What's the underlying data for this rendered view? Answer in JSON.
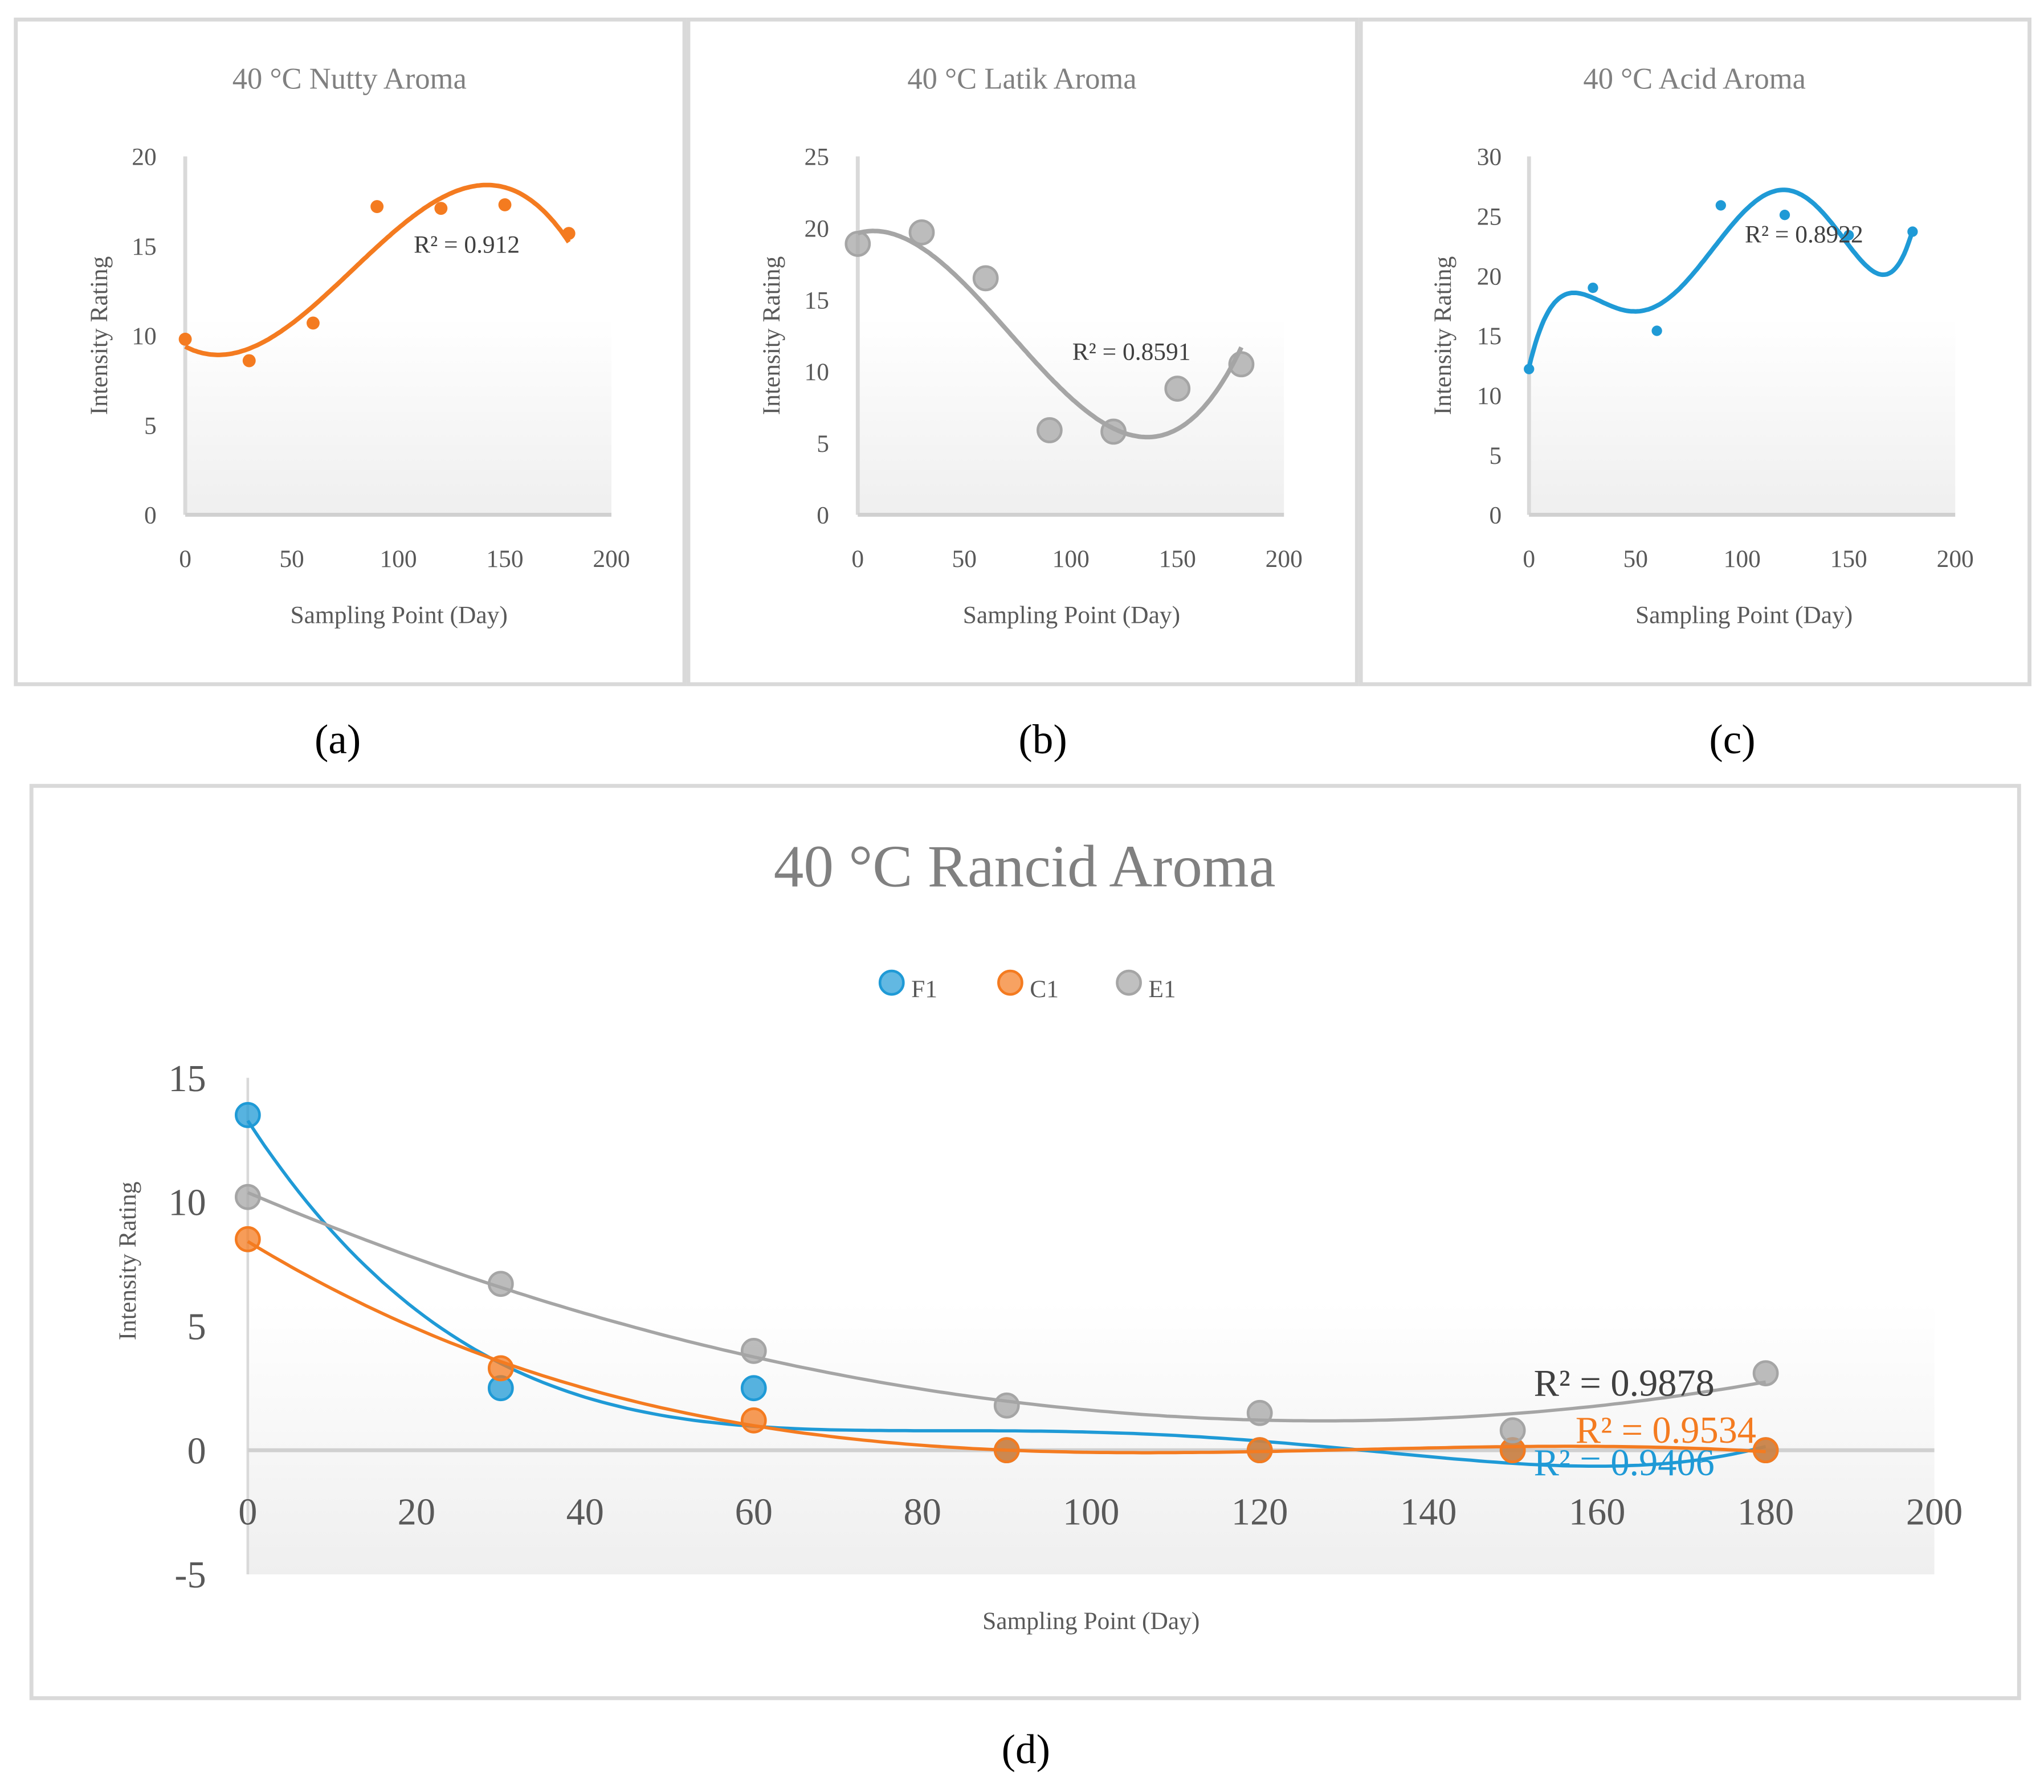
{
  "captions": [
    "(a)",
    "(b)",
    "(c)",
    "(d)"
  ],
  "chart_data": [
    {
      "type": "scatter",
      "title": "40 °C Nutty Aroma",
      "xlabel": "Sampling Point (Day)",
      "ylabel": "Intensity Rating",
      "xlim": [
        0,
        200
      ],
      "ylim": [
        0,
        20
      ],
      "xticks": [
        0,
        50,
        100,
        150,
        200
      ],
      "yticks": [
        0,
        5,
        10,
        15,
        20
      ],
      "series": [
        {
          "name": "Nutty",
          "color": "#f47b20",
          "trend_degree": 3,
          "r2_label": "R² = 0.912",
          "x": [
            0,
            30,
            60,
            90,
            120,
            150,
            180
          ],
          "y": [
            9.8,
            8.6,
            10.7,
            17.2,
            17.1,
            17.3,
            15.7
          ]
        }
      ]
    },
    {
      "type": "scatter",
      "title": "40 °C Latik Aroma",
      "xlabel": "Sampling Point (Day)",
      "ylabel": "Intensity Rating",
      "xlim": [
        0,
        200
      ],
      "ylim": [
        0,
        25
      ],
      "xticks": [
        0,
        50,
        100,
        150,
        200
      ],
      "yticks": [
        0,
        5,
        10,
        15,
        20,
        25
      ],
      "series": [
        {
          "name": "Latik",
          "color": "#a5a5a5",
          "trend_degree": 3,
          "r2_label": "R² = 0.8591",
          "x": [
            0,
            30,
            60,
            90,
            120,
            150,
            180
          ],
          "y": [
            18.9,
            19.7,
            16.5,
            5.9,
            5.8,
            8.8,
            10.5
          ]
        }
      ]
    },
    {
      "type": "scatter",
      "title": "40 °C Acid Aroma",
      "xlabel": "Sampling Point (Day)",
      "ylabel": "Intensity Rating",
      "xlim": [
        0,
        200
      ],
      "ylim": [
        0,
        30
      ],
      "xticks": [
        0,
        50,
        100,
        150,
        200
      ],
      "yticks": [
        0,
        5,
        10,
        15,
        20,
        25,
        30
      ],
      "series": [
        {
          "name": "Acid",
          "color": "#1f9ad6",
          "trend_degree": 5,
          "r2_label": "R² = 0.8922",
          "x": [
            0,
            30,
            60,
            90,
            120,
            150,
            180
          ],
          "y": [
            12.2,
            19.0,
            15.4,
            25.9,
            25.1,
            23.4,
            23.7
          ]
        }
      ]
    },
    {
      "type": "scatter",
      "title": "40 °C Rancid Aroma",
      "xlabel": "Sampling Point (Day)",
      "ylabel": "Intensity Rating",
      "xlim": [
        0,
        200
      ],
      "ylim": [
        -5,
        15
      ],
      "xticks": [
        0,
        20,
        40,
        60,
        80,
        100,
        120,
        140,
        160,
        180,
        200
      ],
      "yticks": [
        -5,
        0,
        5,
        10,
        15
      ],
      "legend": "top",
      "series": [
        {
          "name": "F1",
          "color": "#1f9ad6",
          "trend_degree": 4,
          "r2_label": "R² = 0.9406",
          "x": [
            0,
            30,
            60,
            90,
            120,
            150,
            180
          ],
          "y": [
            13.5,
            2.5,
            2.5,
            0,
            0,
            0,
            0
          ]
        },
        {
          "name": "C1",
          "color": "#f47b20",
          "trend_degree": 3,
          "r2_label": "R² = 0.9534",
          "x": [
            0,
            30,
            60,
            90,
            120,
            150,
            180
          ],
          "y": [
            8.5,
            3.3,
            1.2,
            0,
            0,
            0,
            0
          ]
        },
        {
          "name": "E1",
          "color": "#a5a5a5",
          "trend_degree": 2,
          "r2_label": "R² = 0.9878",
          "x": [
            0,
            30,
            60,
            90,
            120,
            150,
            180
          ],
          "y": [
            10.2,
            6.7,
            4.0,
            1.8,
            1.5,
            0.8,
            3.1
          ]
        }
      ]
    }
  ]
}
